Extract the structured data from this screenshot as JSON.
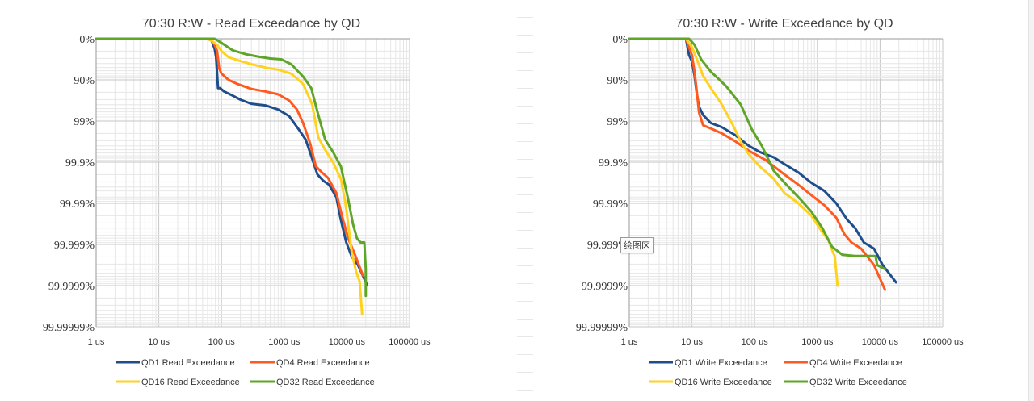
{
  "colors": {
    "qd1": "#1f4e8c",
    "qd4": "#ff5a1f",
    "qd16": "#ffd21f",
    "qd32": "#5ea528"
  },
  "tooltip": "绘图区",
  "chart_data": [
    {
      "type": "line",
      "title": "70:30 R:W - Read Exceedance by QD",
      "x_scale": "log",
      "xlim": [
        1,
        100000
      ],
      "y_scale": "nines",
      "ylim_nines": [
        0,
        7
      ],
      "xtick_labels": [
        "1 us",
        "10 us",
        "100 us",
        "1000 us",
        "10000 us",
        "100000 us"
      ],
      "ytick_labels": [
        "0%",
        "90%",
        "99%",
        "99.9%",
        "99.99%",
        "99.999%",
        "99.9999%",
        "99.99999%"
      ],
      "series": [
        {
          "name": "QD1 Read Exceedance",
          "color_key": "qd1",
          "points": [
            [
              1,
              0
            ],
            [
              60,
              0
            ],
            [
              70,
              0.05
            ],
            [
              78,
              0.25
            ],
            [
              82,
              0.45
            ],
            [
              88,
              1.2
            ],
            [
              95,
              1.2
            ],
            [
              110,
              1.28
            ],
            [
              150,
              1.38
            ],
            [
              200,
              1.48
            ],
            [
              300,
              1.58
            ],
            [
              500,
              1.62
            ],
            [
              800,
              1.72
            ],
            [
              1200,
              1.88
            ],
            [
              1700,
              2.2
            ],
            [
              2200,
              2.45
            ],
            [
              2700,
              2.85
            ],
            [
              3400,
              3.3
            ],
            [
              4200,
              3.45
            ],
            [
              5200,
              3.55
            ],
            [
              6800,
              3.85
            ],
            [
              8000,
              4.4
            ],
            [
              9800,
              4.95
            ],
            [
              12000,
              5.3
            ],
            [
              15000,
              5.5
            ],
            [
              21000,
              5.98
            ]
          ]
        },
        {
          "name": "QD4 Read Exceedance",
          "color_key": "qd4",
          "points": [
            [
              1,
              0
            ],
            [
              60,
              0
            ],
            [
              70,
              0.05
            ],
            [
              78,
              0.15
            ],
            [
              85,
              0.3
            ],
            [
              92,
              0.72
            ],
            [
              100,
              0.85
            ],
            [
              130,
              1.0
            ],
            [
              180,
              1.1
            ],
            [
              300,
              1.22
            ],
            [
              500,
              1.28
            ],
            [
              800,
              1.35
            ],
            [
              1200,
              1.5
            ],
            [
              1600,
              1.72
            ],
            [
              2000,
              2.05
            ],
            [
              2600,
              2.55
            ],
            [
              3200,
              3.1
            ],
            [
              4000,
              3.25
            ],
            [
              5000,
              3.38
            ],
            [
              6800,
              3.75
            ],
            [
              8500,
              4.35
            ],
            [
              10500,
              4.85
            ],
            [
              13500,
              5.25
            ],
            [
              16500,
              5.6
            ],
            [
              18000,
              5.75
            ]
          ]
        },
        {
          "name": "QD16 Read Exceedance",
          "color_key": "qd16",
          "points": [
            [
              1,
              0
            ],
            [
              60,
              0
            ],
            [
              70,
              0.05
            ],
            [
              85,
              0.15
            ],
            [
              100,
              0.3
            ],
            [
              130,
              0.45
            ],
            [
              180,
              0.52
            ],
            [
              300,
              0.62
            ],
            [
              500,
              0.7
            ],
            [
              800,
              0.75
            ],
            [
              1300,
              0.85
            ],
            [
              2000,
              1.1
            ],
            [
              2800,
              1.6
            ],
            [
              3500,
              2.4
            ],
            [
              4500,
              2.7
            ],
            [
              6000,
              3.0
            ],
            [
              8000,
              3.4
            ],
            [
              9500,
              4.0
            ],
            [
              10500,
              4.5
            ],
            [
              12000,
              5.2
            ],
            [
              14000,
              5.65
            ],
            [
              16000,
              5.9
            ],
            [
              17500,
              6.7
            ]
          ]
        },
        {
          "name": "QD32 Read Exceedance",
          "color_key": "qd32",
          "points": [
            [
              1,
              0
            ],
            [
              78,
              0
            ],
            [
              100,
              0.1
            ],
            [
              150,
              0.28
            ],
            [
              250,
              0.38
            ],
            [
              400,
              0.44
            ],
            [
              600,
              0.48
            ],
            [
              900,
              0.5
            ],
            [
              1300,
              0.62
            ],
            [
              2000,
              0.92
            ],
            [
              2700,
              1.2
            ],
            [
              3500,
              1.85
            ],
            [
              4500,
              2.45
            ],
            [
              6000,
              2.75
            ],
            [
              8000,
              3.1
            ],
            [
              10500,
              3.9
            ],
            [
              12500,
              4.5
            ],
            [
              14500,
              4.85
            ],
            [
              16500,
              4.95
            ],
            [
              19000,
              4.95
            ],
            [
              20000,
              5.6
            ],
            [
              20000,
              6.25
            ]
          ]
        }
      ]
    },
    {
      "type": "line",
      "title": "70:30 R:W - Write Exceedance by QD",
      "x_scale": "log",
      "xlim": [
        1,
        100000
      ],
      "y_scale": "nines",
      "ylim_nines": [
        0,
        7
      ],
      "xtick_labels": [
        "1 us",
        "10 us",
        "100 us",
        "1000 us",
        "10000 us",
        "100000 us"
      ],
      "ytick_labels": [
        "0%",
        "90%",
        "99%",
        "99.9%",
        "99.99%",
        "99.999%",
        "99.9999%",
        "99.99999%"
      ],
      "series": [
        {
          "name": "QD1 Write Exceedance",
          "color_key": "qd1",
          "points": [
            [
              1,
              0
            ],
            [
              8,
              0
            ],
            [
              9,
              0.4
            ],
            [
              10,
              0.55
            ],
            [
              11,
              0.9
            ],
            [
              12,
              1.35
            ],
            [
              13,
              1.65
            ],
            [
              15,
              1.85
            ],
            [
              20,
              2.05
            ],
            [
              30,
              2.15
            ],
            [
              50,
              2.35
            ],
            [
              80,
              2.6
            ],
            [
              120,
              2.75
            ],
            [
              200,
              2.88
            ],
            [
              300,
              3.05
            ],
            [
              500,
              3.25
            ],
            [
              800,
              3.5
            ],
            [
              1300,
              3.7
            ],
            [
              2000,
              4.0
            ],
            [
              3000,
              4.4
            ],
            [
              4000,
              4.6
            ],
            [
              5500,
              4.95
            ],
            [
              8000,
              5.1
            ],
            [
              11000,
              5.5
            ],
            [
              18000,
              5.92
            ]
          ]
        },
        {
          "name": "QD4 Write Exceedance",
          "color_key": "qd4",
          "points": [
            [
              1,
              0
            ],
            [
              8,
              0
            ],
            [
              10,
              0.4
            ],
            [
              11,
              0.8
            ],
            [
              12,
              1.3
            ],
            [
              13,
              1.8
            ],
            [
              15,
              2.1
            ],
            [
              20,
              2.18
            ],
            [
              30,
              2.3
            ],
            [
              50,
              2.5
            ],
            [
              80,
              2.72
            ],
            [
              150,
              2.95
            ],
            [
              300,
              3.3
            ],
            [
              500,
              3.55
            ],
            [
              800,
              3.8
            ],
            [
              1300,
              4.05
            ],
            [
              2000,
              4.35
            ],
            [
              2700,
              4.75
            ],
            [
              3500,
              4.95
            ],
            [
              5000,
              5.1
            ],
            [
              8000,
              5.5
            ],
            [
              12000,
              6.1
            ]
          ]
        },
        {
          "name": "QD16 Write Exceedance",
          "color_key": "qd16",
          "points": [
            [
              1,
              0
            ],
            [
              8,
              0
            ],
            [
              10,
              0.2
            ],
            [
              12,
              0.5
            ],
            [
              15,
              0.9
            ],
            [
              20,
              1.2
            ],
            [
              30,
              1.6
            ],
            [
              45,
              2.1
            ],
            [
              60,
              2.5
            ],
            [
              80,
              2.8
            ],
            [
              120,
              3.1
            ],
            [
              200,
              3.4
            ],
            [
              300,
              3.75
            ],
            [
              500,
              4.0
            ],
            [
              800,
              4.3
            ],
            [
              1200,
              4.7
            ],
            [
              1500,
              4.9
            ],
            [
              1900,
              5.3
            ],
            [
              2100,
              6.0
            ]
          ]
        },
        {
          "name": "QD32 Write Exceedance",
          "color_key": "qd32",
          "points": [
            [
              1,
              0
            ],
            [
              9,
              0
            ],
            [
              11,
              0.15
            ],
            [
              14,
              0.5
            ],
            [
              20,
              0.8
            ],
            [
              35,
              1.15
            ],
            [
              60,
              1.6
            ],
            [
              90,
              2.2
            ],
            [
              130,
              2.6
            ],
            [
              200,
              3.2
            ],
            [
              300,
              3.5
            ],
            [
              500,
              3.85
            ],
            [
              800,
              4.2
            ],
            [
              1200,
              4.6
            ],
            [
              1700,
              5.05
            ],
            [
              2500,
              5.25
            ],
            [
              4000,
              5.28
            ],
            [
              6000,
              5.28
            ],
            [
              8500,
              5.28
            ],
            [
              9000,
              5.5
            ],
            [
              12000,
              5.6
            ]
          ]
        }
      ]
    }
  ]
}
